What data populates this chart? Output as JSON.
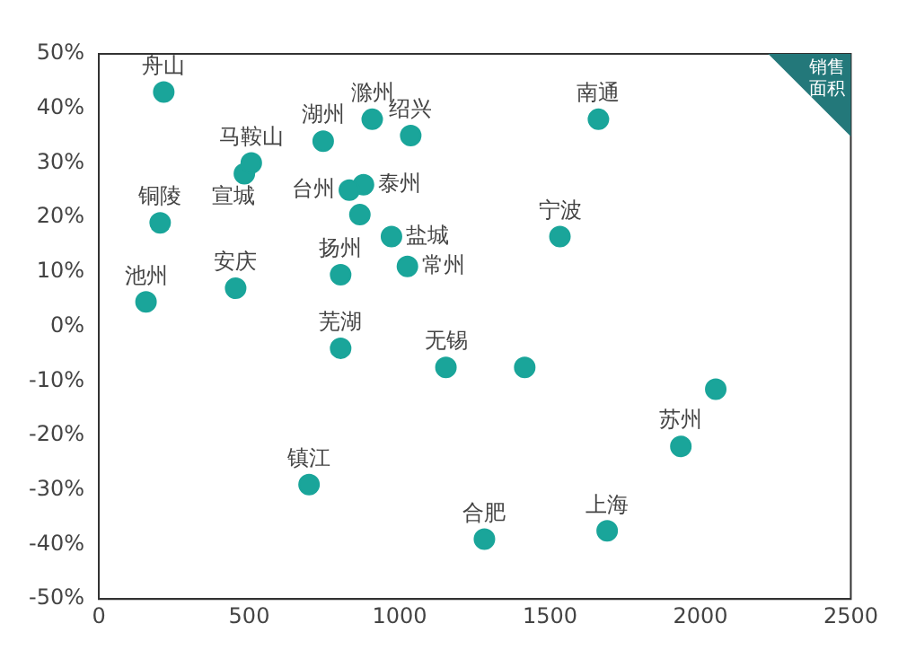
{
  "chart_data": {
    "type": "scatter",
    "xlabel": "销售面积",
    "xlim": [
      0,
      2500
    ],
    "xticks": [
      0,
      500,
      1000,
      1500,
      2000,
      2500
    ],
    "ylim": [
      -50,
      50
    ],
    "yticks": [
      {
        "value": -50,
        "label": "-50%"
      },
      {
        "value": -40,
        "label": "-40%"
      },
      {
        "value": -30,
        "label": "-30%"
      },
      {
        "value": -20,
        "label": "-20%"
      },
      {
        "value": -10,
        "label": "-10%"
      },
      {
        "value": 0,
        "label": "0%"
      },
      {
        "value": 10,
        "label": "10%"
      },
      {
        "value": 20,
        "label": "20%"
      },
      {
        "value": 30,
        "label": "30%"
      },
      {
        "value": 40,
        "label": "40%"
      },
      {
        "value": 50,
        "label": "50%"
      }
    ],
    "grid": false,
    "legend": false,
    "marker": "circle",
    "series": [
      {
        "name": "舟山",
        "color": "#1aa59a",
        "x": [
          216
        ],
        "values": [
          43
        ]
      },
      {
        "name": "马鞍山",
        "color": "#1aa59a",
        "x": [
          507
        ],
        "values": [
          30
        ]
      },
      {
        "name": "宣城",
        "color": "#1aa59a",
        "x": [
          484
        ],
        "values": [
          28
        ]
      },
      {
        "name": "铜陵",
        "color": "#1aa59a",
        "x": [
          204
        ],
        "values": [
          19
        ]
      },
      {
        "name": "池州",
        "color": "#1aa59a",
        "x": [
          157
        ],
        "values": [
          4.5
        ]
      },
      {
        "name": "安庆",
        "color": "#1aa59a",
        "x": [
          455
        ],
        "values": [
          7
        ]
      },
      {
        "name": "湖州",
        "color": "#1aa59a",
        "x": [
          746
        ],
        "values": [
          34
        ]
      },
      {
        "name": "滁州",
        "color": "#1aa59a",
        "x": [
          909
        ],
        "values": [
          38
        ]
      },
      {
        "name": "绍兴",
        "color": "#1aa59a",
        "x": [
          1037
        ],
        "values": [
          35
        ]
      },
      {
        "name": "台州",
        "color": "#1aa59a",
        "x": [
          833
        ],
        "values": [
          25
        ]
      },
      {
        "name": "泰州",
        "color": "#1aa59a",
        "x": [
          880
        ],
        "values": [
          26
        ]
      },
      {
        "color": "#1aa59a",
        "x": [
          868
        ],
        "values": [
          20.5
        ]
      },
      {
        "name": "扬州",
        "color": "#1aa59a",
        "x": [
          804
        ],
        "values": [
          9.5
        ]
      },
      {
        "name": "盐城",
        "color": "#1aa59a",
        "x": [
          973
        ],
        "values": [
          16.5
        ]
      },
      {
        "name": "常州",
        "color": "#1aa59a",
        "x": [
          1026
        ],
        "values": [
          11
        ]
      },
      {
        "name": "宁波",
        "color": "#1aa59a",
        "x": [
          1533
        ],
        "values": [
          16.5
        ]
      },
      {
        "name": "南通",
        "color": "#1aa59a",
        "x": [
          1661
        ],
        "values": [
          38
        ]
      },
      {
        "name": "芜湖",
        "color": "#1aa59a",
        "x": [
          804
        ],
        "values": [
          -4
        ]
      },
      {
        "name": "无锡",
        "color": "#1aa59a",
        "x": [
          1154
        ],
        "values": [
          -7.5
        ]
      },
      {
        "color": "#1aa59a",
        "x": [
          1416
        ],
        "values": [
          -7.5
        ]
      },
      {
        "color": "#1aa59a",
        "x": [
          2051
        ],
        "values": [
          -11.5
        ]
      },
      {
        "name": "苏州",
        "color": "#1aa59a",
        "x": [
          1935
        ],
        "values": [
          -22
        ]
      },
      {
        "name": "镇江",
        "color": "#1aa59a",
        "x": [
          699
        ],
        "values": [
          -29
        ]
      },
      {
        "name": "合肥",
        "color": "#1aa59a",
        "x": [
          1282
        ],
        "values": [
          -39
        ]
      },
      {
        "name": "上海",
        "color": "#1aa59a",
        "x": [
          1690
        ],
        "values": [
          -37.5
        ]
      }
    ]
  }
}
